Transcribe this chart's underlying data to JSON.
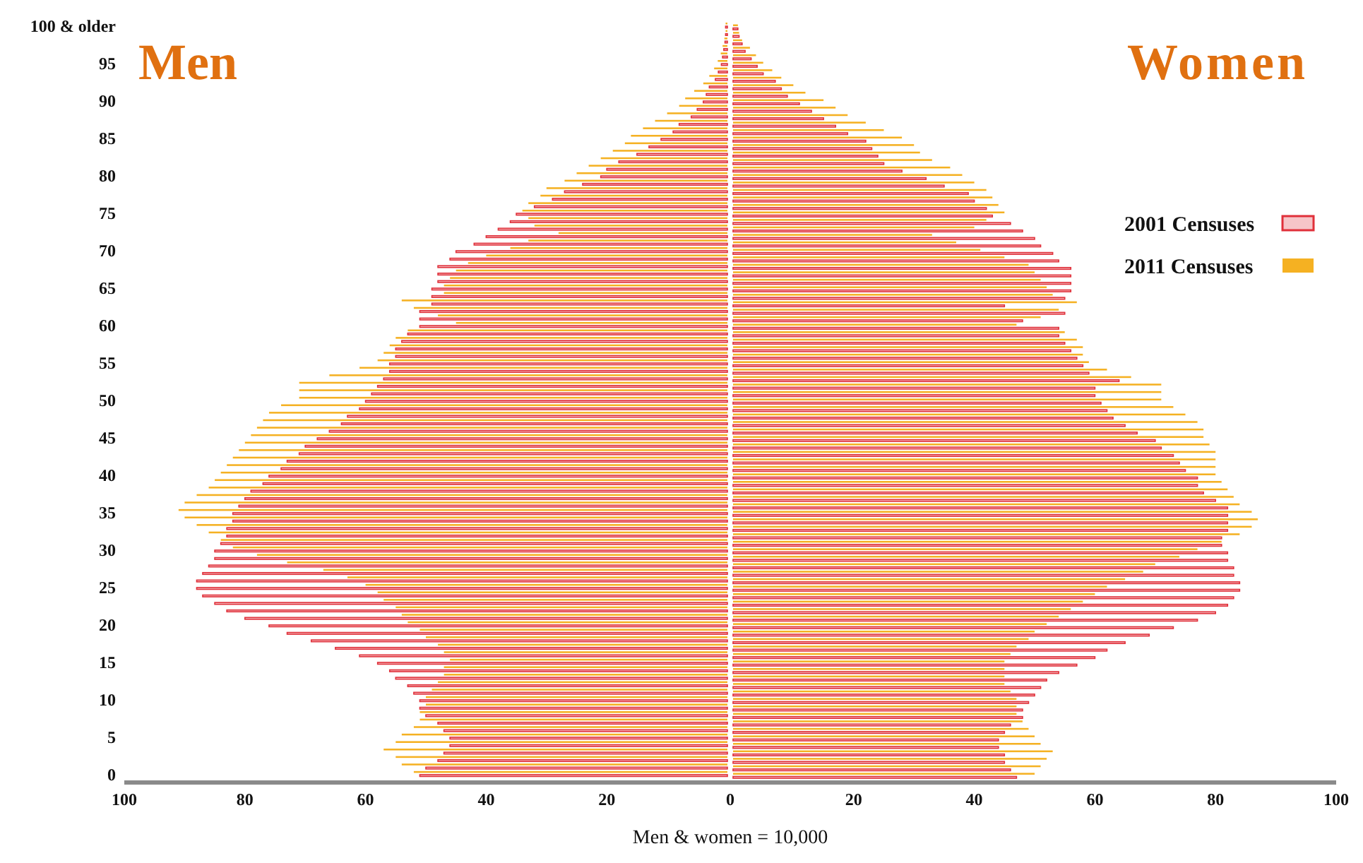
{
  "chart_data": {
    "type": "bar",
    "orientation": "horizontal",
    "annotations": [
      "Men",
      "Women"
    ],
    "xlabel": "Men & women = 10,000",
    "categories": [
      "100 & older",
      null,
      null,
      null,
      null,
      "95",
      null,
      null,
      null,
      null,
      "90",
      null,
      null,
      null,
      null,
      "85",
      null,
      null,
      null,
      null,
      "80",
      null,
      null,
      null,
      null,
      "75",
      null,
      null,
      null,
      null,
      "70",
      null,
      null,
      null,
      null,
      "65",
      null,
      null,
      null,
      null,
      "60",
      null,
      null,
      null,
      null,
      "55",
      null,
      null,
      null,
      null,
      "50",
      null,
      null,
      null,
      null,
      "45",
      null,
      null,
      null,
      null,
      "40",
      null,
      null,
      null,
      null,
      "35",
      null,
      null,
      null,
      null,
      "30",
      null,
      null,
      null,
      null,
      "25",
      null,
      null,
      null,
      null,
      "20",
      null,
      null,
      null,
      null,
      "15",
      null,
      null,
      null,
      null,
      "10",
      null,
      null,
      null,
      null,
      "5",
      null,
      null,
      null,
      null,
      "0"
    ],
    "xlim": [
      -100,
      100
    ],
    "xticks": [
      {
        "value": -100,
        "label": "100"
      },
      {
        "value": -80,
        "label": "80"
      },
      {
        "value": -60,
        "label": "60"
      },
      {
        "value": -40,
        "label": "40"
      },
      {
        "value": -20,
        "label": "20"
      },
      0,
      20,
      40,
      60,
      80,
      100
    ],
    "legend": "right",
    "series": [
      {
        "name": "2011 Censuses",
        "color": "#f5b122",
        "values": [
          -0.3,
          -0.3,
          -0.5,
          -0.8,
          -1.1,
          -1.6,
          -2.2,
          -3,
          -4,
          -5.5,
          -7,
          -8,
          -10,
          -12,
          -14,
          -16,
          -17,
          -19,
          -21,
          -23,
          -25,
          -27,
          -30,
          -31,
          -33,
          -34,
          -33,
          -32,
          -28,
          -33,
          -36,
          -40,
          -43,
          -45,
          -46,
          -47,
          -47,
          -54,
          -52,
          -48,
          -45,
          -53,
          -55,
          -56,
          -57,
          -58,
          -61,
          -66,
          -71,
          -71,
          -71,
          -74,
          -76,
          -77,
          -78,
          -79,
          -80,
          -81,
          -82,
          -83,
          -84,
          -85,
          -86,
          -88,
          -90,
          -91,
          -90,
          -88,
          -86,
          -84,
          -82,
          -78,
          -73,
          -67,
          -63,
          -60,
          -58,
          -57,
          -55,
          -54,
          -53,
          -51,
          -50,
          -48,
          -47,
          -46,
          -47,
          -47,
          -48,
          -49,
          -50,
          -50,
          -51,
          -51,
          -52,
          -54,
          -55,
          -57,
          -55,
          -54,
          -52
        ]
      },
      {
        "color": "#f5b122",
        "values": [
          0.8,
          1,
          1.5,
          2.8,
          3.8,
          5,
          6.5,
          8,
          10,
          12,
          15,
          17,
          19,
          22,
          25,
          28,
          30,
          31,
          33,
          36,
          38,
          40,
          42,
          43,
          44,
          45,
          42,
          40,
          33,
          37,
          41,
          45,
          49,
          50,
          51,
          52,
          53,
          57,
          54,
          51,
          47,
          55,
          57,
          58,
          58,
          59,
          62,
          66,
          71,
          71,
          71,
          73,
          75,
          77,
          78,
          78,
          79,
          80,
          80,
          80,
          80,
          81,
          82,
          83,
          84,
          86,
          87,
          86,
          84,
          81,
          77,
          74,
          70,
          68,
          65,
          62,
          60,
          58,
          56,
          54,
          52,
          50,
          49,
          47,
          46,
          45,
          45,
          45,
          45,
          46,
          47,
          47,
          47,
          48,
          49,
          50,
          51,
          53,
          52,
          51,
          50
        ]
      },
      {
        "name": "2001 Censuses",
        "color": "#e0303a",
        "values": [
          -0.3,
          -0.3,
          -0.4,
          -0.6,
          -0.8,
          -1,
          -1.5,
          -2,
          -3,
          -3.5,
          -4,
          -5,
          -6,
          -8,
          -9,
          -11,
          -13,
          -15,
          -18,
          -20,
          -21,
          -24,
          -27,
          -29,
          -32,
          -35,
          -36,
          -38,
          -40,
          -42,
          -45,
          -46,
          -48,
          -48,
          -48,
          -49,
          -49,
          -49,
          -51,
          -51,
          -51,
          -53,
          -54,
          -55,
          -55,
          -56,
          -56,
          -57,
          -58,
          -59,
          -60,
          -61,
          -63,
          -64,
          -66,
          -68,
          -70,
          -71,
          -73,
          -74,
          -76,
          -77,
          -79,
          -80,
          -81,
          -82,
          -82,
          -83,
          -83,
          -84,
          -85,
          -85,
          -86,
          -87,
          -88,
          -88,
          -87,
          -85,
          -83,
          -80,
          -76,
          -73,
          -69,
          -65,
          -61,
          -58,
          -56,
          -55,
          -53,
          -52,
          -51,
          -51,
          -50,
          -48,
          -47,
          -46,
          -46,
          -47,
          -48,
          -50,
          -51
        ]
      },
      {
        "color": "#e0303a",
        "values": [
          0.8,
          1,
          1.5,
          2,
          3,
          4,
          5,
          7,
          8,
          9,
          11,
          13,
          15,
          17,
          19,
          22,
          23,
          24,
          25,
          28,
          32,
          35,
          39,
          40,
          42,
          43,
          46,
          48,
          50,
          51,
          53,
          54,
          56,
          56,
          56,
          56,
          55,
          45,
          55,
          48,
          54,
          54,
          55,
          56,
          57,
          58,
          59,
          64,
          60,
          60,
          61,
          62,
          63,
          65,
          67,
          70,
          71,
          73,
          74,
          75,
          77,
          77,
          78,
          80,
          82,
          82,
          82,
          82,
          81,
          81,
          82,
          82,
          83,
          83,
          84,
          84,
          83,
          82,
          80,
          77,
          73,
          69,
          65,
          62,
          60,
          57,
          54,
          52,
          51,
          50,
          49,
          48,
          48,
          46,
          45,
          44,
          44,
          45,
          45,
          46,
          47
        ]
      }
    ]
  }
}
